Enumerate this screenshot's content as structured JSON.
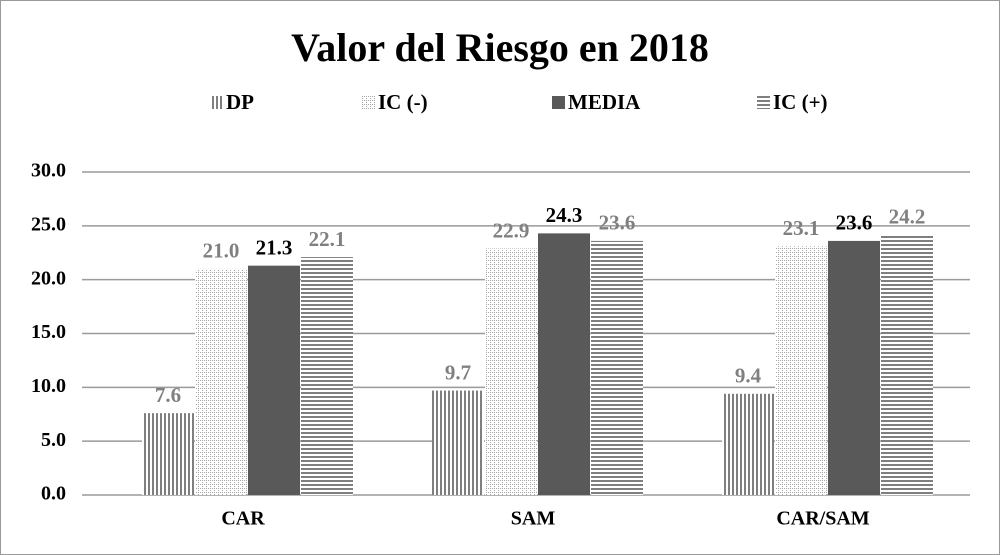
{
  "chart_data": {
    "type": "bar",
    "title": "Valor del Riesgo en 2018",
    "categories": [
      "CAR",
      "SAM",
      "CAR/SAM"
    ],
    "series": [
      {
        "name": "DP",
        "color": "#7f7f7f",
        "hatch": "vertical",
        "values": [
          7.6,
          9.7,
          9.4
        ],
        "value_labels": [
          "7.6",
          "9.7",
          "9.4"
        ]
      },
      {
        "name": "IC (-)",
        "color": "#a6a6a6",
        "hatch": "dots",
        "values": [
          21,
          22.9,
          23.1
        ],
        "value_labels": [
          "21.0",
          "22.9",
          "23.1"
        ]
      },
      {
        "name": "MEDIA",
        "color": "#595959",
        "hatch": "solid",
        "values": [
          21.3,
          24.3,
          23.6
        ],
        "value_labels": [
          "21.3",
          "24.3",
          "23.6"
        ]
      },
      {
        "name": "IC (+)",
        "color": "#7f7f7f",
        "hatch": "horizontal",
        "values": [
          22.1,
          23.6,
          24.2
        ],
        "value_labels": [
          "22.1",
          "23.6",
          "24.2"
        ]
      }
    ],
    "ylim": [
      0,
      30
    ],
    "yticks": [
      {
        "value": 0,
        "label": "0.0"
      },
      {
        "value": 5,
        "label": "5.0"
      },
      {
        "value": 10,
        "label": "10.0"
      },
      {
        "value": 15,
        "label": "15.0"
      },
      {
        "value": 20,
        "label": "20.0"
      },
      {
        "value": 25,
        "label": "25.0"
      },
      {
        "value": 30,
        "label": "30.0"
      }
    ],
    "grid": true,
    "legend": "top"
  }
}
